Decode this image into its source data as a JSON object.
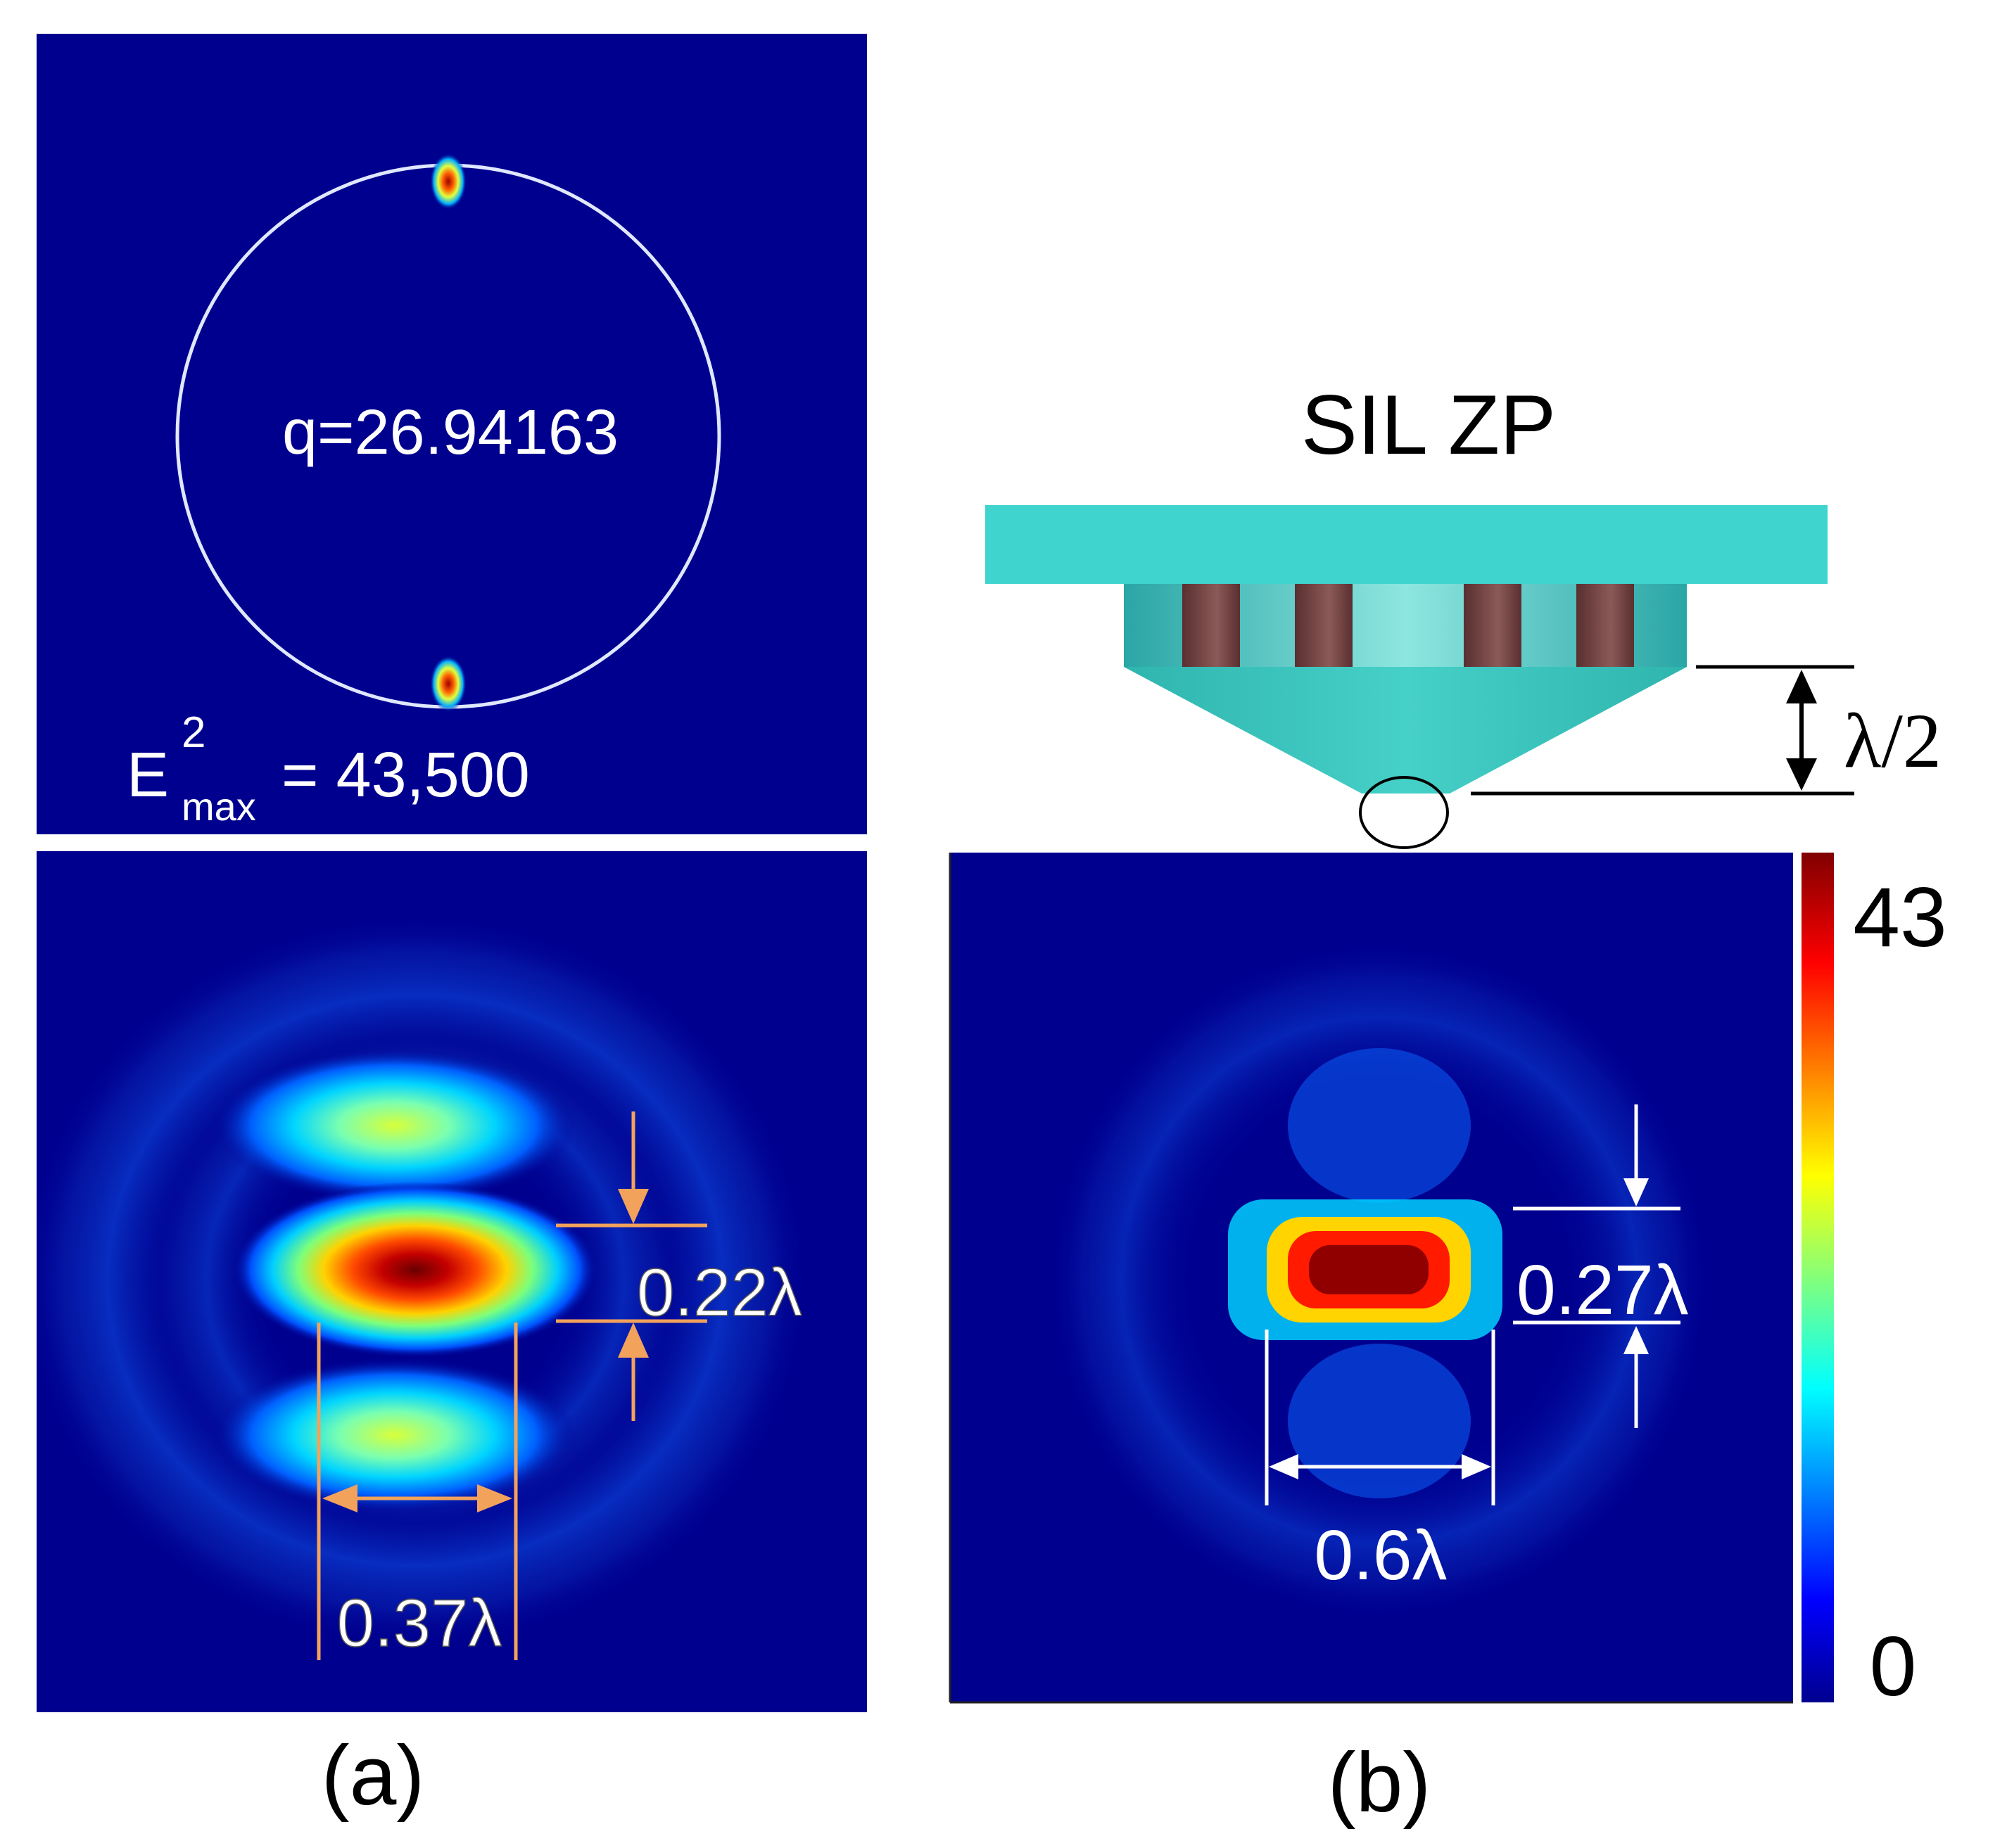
{
  "panel_a": {
    "q_text": "q=26.94163",
    "emax_prefix": "E",
    "emax_sup": "2",
    "emax_sub": "max",
    "emax_value": "= 43,500",
    "height_label": "0.22λ",
    "width_label": "0.37λ",
    "caption": "(a)"
  },
  "panel_b": {
    "title": "SIL ZP",
    "thickness_label": "λ/2",
    "height_label": "0.27λ",
    "width_label": "0.6λ",
    "colorbar_max": "43",
    "colorbar_min": "0",
    "caption": "(b)"
  },
  "colors": {
    "field_background": "#00008f",
    "annotation_orange": "#f3a25c",
    "annotation_white": "#ffffff",
    "lens_cyan": "#40d4cf",
    "zone_brown": "#6b3c3c"
  }
}
